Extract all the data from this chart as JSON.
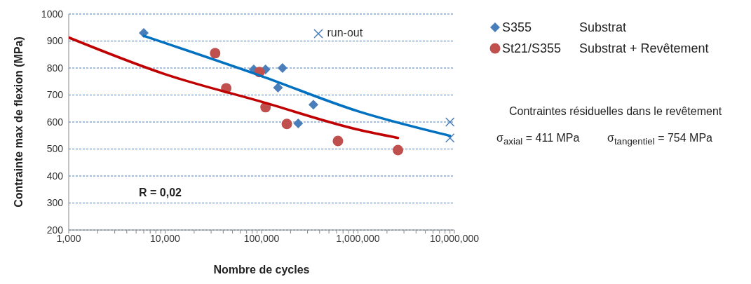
{
  "chart_data": {
    "type": "scatter",
    "xlabel": "Nombre de cycles",
    "ylabel": "Contrainte max de flexion (MPa)",
    "log": "x",
    "xlim": [
      1000,
      10000000
    ],
    "ylim": [
      200,
      1000
    ],
    "yticks": [
      200,
      300,
      400,
      500,
      600,
      700,
      800,
      900,
      1000
    ],
    "xticks": [
      {
        "value": 1000,
        "label": "1,000"
      },
      {
        "value": 2000,
        "label": null
      },
      {
        "value": 3000,
        "label": null
      },
      {
        "value": 4000,
        "label": null
      },
      {
        "value": 5000,
        "label": null
      },
      {
        "value": 6000,
        "label": null
      },
      {
        "value": 7000,
        "label": null
      },
      {
        "value": 8000,
        "label": null
      },
      {
        "value": 9000,
        "label": null
      },
      {
        "value": 10000,
        "label": "10,000"
      },
      {
        "value": 20000,
        "label": null
      },
      {
        "value": 30000,
        "label": null
      },
      {
        "value": 40000,
        "label": null
      },
      {
        "value": 50000,
        "label": null
      },
      {
        "value": 60000,
        "label": null
      },
      {
        "value": 70000,
        "label": null
      },
      {
        "value": 80000,
        "label": null
      },
      {
        "value": 90000,
        "label": null
      },
      {
        "value": 100000,
        "label": "100,000"
      },
      {
        "value": 200000,
        "label": null
      },
      {
        "value": 300000,
        "label": null
      },
      {
        "value": 400000,
        "label": null
      },
      {
        "value": 500000,
        "label": null
      },
      {
        "value": 600000,
        "label": null
      },
      {
        "value": 700000,
        "label": null
      },
      {
        "value": 800000,
        "label": null
      },
      {
        "value": 900000,
        "label": null
      },
      {
        "value": 1000000,
        "label": "1,000,000"
      },
      {
        "value": 2000000,
        "label": null
      },
      {
        "value": 3000000,
        "label": null
      },
      {
        "value": 4000000,
        "label": null
      },
      {
        "value": 5000000,
        "label": null
      },
      {
        "value": 6000000,
        "label": null
      },
      {
        "value": 7000000,
        "label": null
      },
      {
        "value": 8000000,
        "label": null
      },
      {
        "value": 9000000,
        "label": null
      },
      {
        "value": 10000000,
        "label": "10,000,000"
      }
    ],
    "grid": "y",
    "legend": "top right",
    "series": [
      {
        "name": "S355",
        "color": "#4a7ebb",
        "marker": "diamond",
        "x": [
          6000,
          83000,
          110000,
          165000,
          148000,
          345000,
          240000
        ],
        "values": [
          930,
          795,
          795,
          800,
          727,
          664,
          595
        ]
      },
      {
        "name": "St21/S355",
        "color": "#c0504d",
        "marker": "circle",
        "x": [
          33000,
          43000,
          95000,
          110000,
          183000,
          620000,
          2600000
        ],
        "values": [
          855,
          725,
          785,
          655,
          593,
          530,
          496
        ]
      },
      {
        "name": "run-out",
        "color": "#4a7ebb",
        "marker": "cross",
        "x": [
          9000000,
          9000000
        ],
        "values": [
          600,
          541
        ]
      },
      {
        "type": "line",
        "color": "#0070c0",
        "marker": "none",
        "x": [
          6000,
          100000,
          1000000,
          9000000
        ],
        "values": [
          919,
          770,
          640,
          549
        ]
      },
      {
        "type": "line",
        "color": "#c00000",
        "marker": "none",
        "x": [
          1000,
          10000,
          100000,
          1000000,
          2600000
        ],
        "values": [
          913,
          777,
          675,
          572,
          541
        ]
      }
    ],
    "annotations": [
      "Substrat",
      "Substrat + Revêtement",
      "R = 0,02",
      "Contraintes résiduelles dans le revêtement",
      "σ$_{axial}$ = 411 MPa",
      "σ$_{tangentiel}$ = 754 MPa"
    ]
  }
}
